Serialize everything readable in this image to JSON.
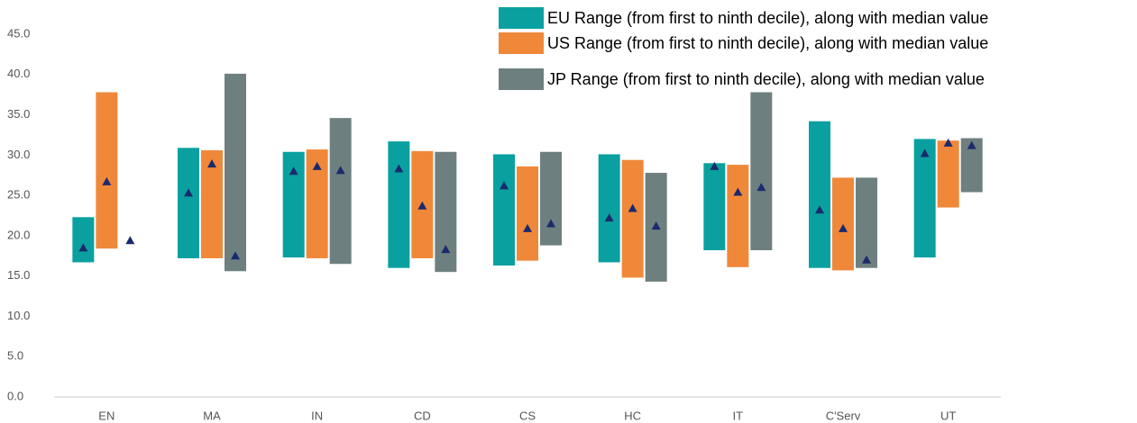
{
  "chart_data": {
    "type": "range",
    "categories": [
      "EN",
      "MA",
      "IN",
      "CD",
      "CS",
      "HC",
      "IT",
      "C'Serv",
      "UT"
    ],
    "series": [
      {
        "name": "EU Range (from first to ninth decile), along with median value",
        "color": "#0aa0a0",
        "low": [
          16.7,
          17.2,
          17.3,
          16.0,
          16.3,
          16.7,
          18.2,
          16.0,
          17.3
        ],
        "high": [
          22.3,
          30.9,
          30.4,
          31.7,
          30.1,
          30.1,
          29.0,
          34.2,
          32.0
        ],
        "median": [
          18.5,
          25.3,
          28.0,
          28.3,
          26.2,
          22.2,
          28.6,
          23.2,
          30.2
        ]
      },
      {
        "name": "US Range (from first to ninth decile), along with median value",
        "color": "#f0883a",
        "low": [
          18.4,
          17.2,
          17.2,
          17.2,
          16.9,
          14.8,
          16.1,
          15.7,
          23.5
        ],
        "high": [
          37.8,
          30.6,
          30.7,
          30.5,
          28.6,
          29.4,
          28.8,
          27.2,
          31.8
        ],
        "median": [
          26.7,
          28.9,
          28.6,
          23.7,
          20.9,
          23.4,
          25.4,
          20.9,
          31.5
        ]
      },
      {
        "name": "JP Range (from first to ninth decile), along with median value",
        "color": "#6e7f80",
        "low": [
          null,
          15.6,
          16.5,
          15.5,
          18.8,
          14.3,
          18.2,
          16.0,
          25.4
        ],
        "high": [
          null,
          40.1,
          34.6,
          30.4,
          30.4,
          27.8,
          37.8,
          27.2,
          32.1
        ],
        "median": [
          19.4,
          17.5,
          28.1,
          18.3,
          21.5,
          21.2,
          26.0,
          17.0,
          31.2
        ]
      }
    ],
    "median_color": "#1a2a6c",
    "ylim": [
      0,
      45
    ],
    "yticks": [
      {
        "value": 0,
        "label": "0.0"
      },
      {
        "value": 5,
        "label": "5.0"
      },
      {
        "value": 10,
        "label": "10.0"
      },
      {
        "value": 15,
        "label": "15.0"
      },
      {
        "value": 20,
        "label": "20.0"
      },
      {
        "value": 25,
        "label": "25.0"
      },
      {
        "value": 30,
        "label": "30.0"
      },
      {
        "value": 35,
        "label": "35.0"
      },
      {
        "value": 40,
        "label": "40.0"
      },
      {
        "value": 45,
        "label": "45.0"
      }
    ],
    "legend": "upper right"
  }
}
